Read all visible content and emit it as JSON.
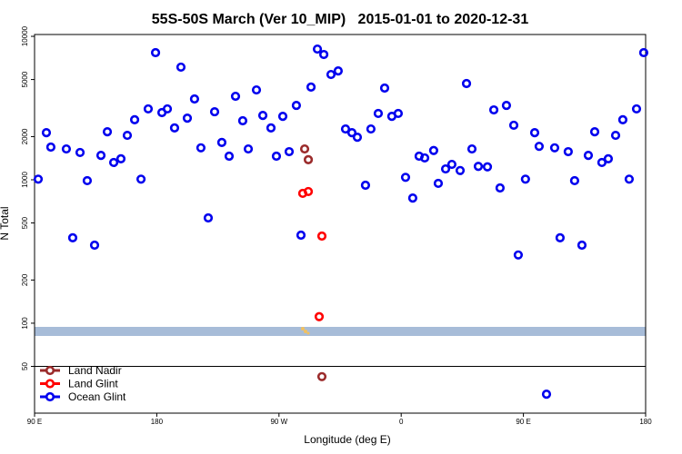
{
  "chart_data": {
    "type": "scatter",
    "title": "55S-50S March (Ver 10_MIP)   2015-01-01 to 2020-12-31",
    "x_label": "Longitude (deg E)",
    "y_label": "N Total",
    "xlim": [
      90,
      540
    ],
    "xticks": [
      {
        "value": 90,
        "label": "90 E"
      },
      180,
      {
        "value": 270,
        "label": "90 W"
      },
      {
        "value": 360,
        "label": "0"
      },
      {
        "value": 450,
        "label": "90 E"
      },
      {
        "value": 540,
        "label": "180"
      }
    ],
    "ylim": [
      23.6,
      10300
    ],
    "yticks": [
      50,
      100,
      200,
      500,
      1000,
      2000,
      5000,
      10000
    ],
    "log_y": true,
    "hline": 50,
    "legend": "bottom-left",
    "series": [
      {
        "name": "Land Nadir",
        "color": "#9b2b2b",
        "x": [
          288.9,
          291.6,
          301.6
        ],
        "values": [
          1640,
          1380,
          42.4
        ]
      },
      {
        "name": "Land Glint",
        "color": "#ff0000",
        "x": [
          287.5,
          291.6,
          301.6,
          299.6
        ],
        "values": [
          804,
          828,
          405,
          111
        ]
      },
      {
        "name": "Ocean Glint",
        "color": "#0000ee",
        "x": [
          92.7,
          98.7,
          102,
          113.4,
          118.1,
          123.5,
          128.8,
          134.2,
          138.9,
          143.6,
          148.3,
          153.6,
          158.3,
          163.7,
          168.4,
          173.7,
          179.1,
          183.8,
          187.8,
          193.1,
          197.8,
          202.5,
          207.8,
          212.5,
          217.9,
          222.6,
          227.9,
          233.3,
          238,
          243.3,
          247.4,
          253.4,
          258.1,
          264.1,
          268.1,
          272.8,
          277.5,
          282.8,
          286.2,
          293.6,
          298.3,
          303,
          308.3,
          313.6,
          319,
          323.7,
          327.7,
          333.7,
          337.7,
          343.1,
          347.8,
          353.1,
          357.8,
          363.2,
          368.5,
          373.2,
          377.3,
          383.9,
          387.3,
          392.7,
          397.3,
          403.4,
          408.1,
          412.1,
          416.8,
          423.5,
          428.2,
          432.8,
          437.5,
          442.9,
          446.2,
          451.5,
          458.3,
          461.6,
          467,
          473,
          477,
          483,
          487.7,
          493.1,
          497.8,
          502.5,
          507.8,
          512.5,
          517.9,
          523.2,
          527.9,
          533.3,
          538.6
        ],
        "values": [
          1010,
          2130,
          1690,
          1640,
          394,
          1550,
          986,
          350,
          1480,
          2160,
          1320,
          1400,
          2040,
          2620,
          1010,
          3120,
          7700,
          2940,
          3120,
          2300,
          6100,
          2690,
          3660,
          1670,
          542,
          2980,
          1820,
          1460,
          3820,
          2580,
          1640,
          4230,
          2810,
          2300,
          1460,
          2770,
          1570,
          3300,
          411,
          4430,
          8150,
          7470,
          5420,
          5740,
          2260,
          2130,
          1980,
          916,
          2260,
          2900,
          4360,
          2770,
          2900,
          1040,
          746,
          1460,
          1420,
          1600,
          944,
          1190,
          1280,
          1160,
          4690,
          1640,
          1240,
          1230,
          3070,
          877,
          3300,
          2400,
          299,
          1010,
          2130,
          1710,
          32,
          1670,
          394,
          1570,
          986,
          350,
          1480,
          2160,
          1320,
          1400,
          2040,
          2620,
          1010,
          3120,
          7700
        ]
      }
    ]
  }
}
